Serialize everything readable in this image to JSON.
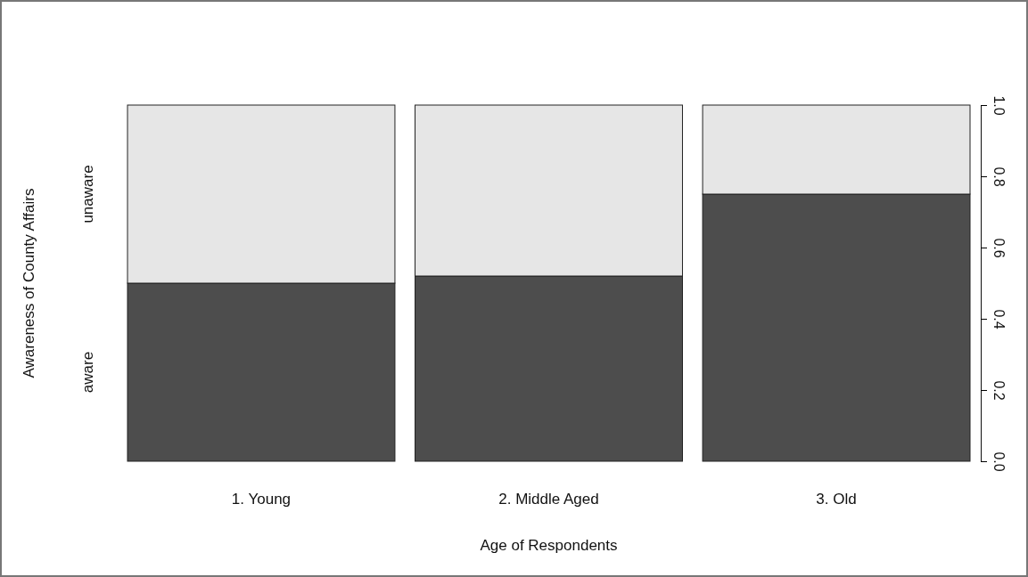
{
  "chart_data": {
    "type": "bar",
    "stacked": true,
    "xlabel": "Age of Respondents",
    "annotations": [
      "Awareness of County Affairs"
    ],
    "categories": [
      "1. Young",
      "2. Middle Aged",
      "3. Old"
    ],
    "series": [
      {
        "name": "aware",
        "color": "#4d4d4d",
        "values": [
          0.5,
          0.52,
          0.75
        ]
      },
      {
        "name": "unaware",
        "color": "#e6e6e6",
        "values": [
          0.5,
          0.48,
          0.25
        ]
      }
    ],
    "ylim": [
      0,
      1
    ],
    "yticks": [
      {
        "value": 0,
        "label": "0.0"
      },
      {
        "value": 0.2,
        "label": "0.2"
      },
      {
        "value": 0.4,
        "label": "0.4"
      },
      {
        "value": 0.6,
        "label": "0.6"
      },
      {
        "value": 0.8,
        "label": "0.8"
      },
      {
        "value": 1,
        "label": "1.0"
      }
    ],
    "grid": false
  }
}
